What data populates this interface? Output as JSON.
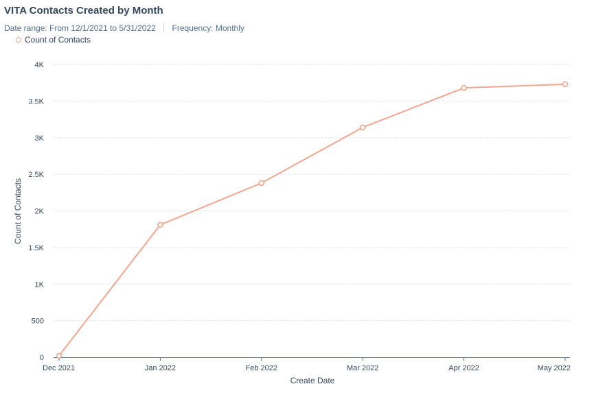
{
  "header": {
    "title": "VITA Contacts Created by Month",
    "date_range": "Date range: From 12/1/2021 to 5/31/2022",
    "frequency": "Frequency: Monthly"
  },
  "legend": {
    "label": "Count of Contacts"
  },
  "colors": {
    "series": "#f2a58e",
    "grid": "#dfe3eb",
    "axis": "#516f90"
  },
  "chart_data": {
    "type": "line",
    "x": [
      "Dec 2021",
      "Jan 2022",
      "Feb 2022",
      "Mar 2022",
      "Apr 2022",
      "May 2022"
    ],
    "series": [
      {
        "name": "Count of Contacts",
        "values": [
          20,
          1810,
          2380,
          3140,
          3680,
          3730
        ]
      }
    ],
    "xlabel": "Create Date",
    "ylabel": "Count of Contacts",
    "ylim": [
      0,
      4000
    ],
    "yticks": [
      0,
      500,
      1000,
      1500,
      2000,
      2500,
      3000,
      3500,
      4000
    ],
    "ytick_labels": [
      "0",
      "500",
      "1K",
      "1.5K",
      "2K",
      "2.5K",
      "3K",
      "3.5K",
      "4K"
    ],
    "grid": true,
    "legend_position": "top-left"
  }
}
